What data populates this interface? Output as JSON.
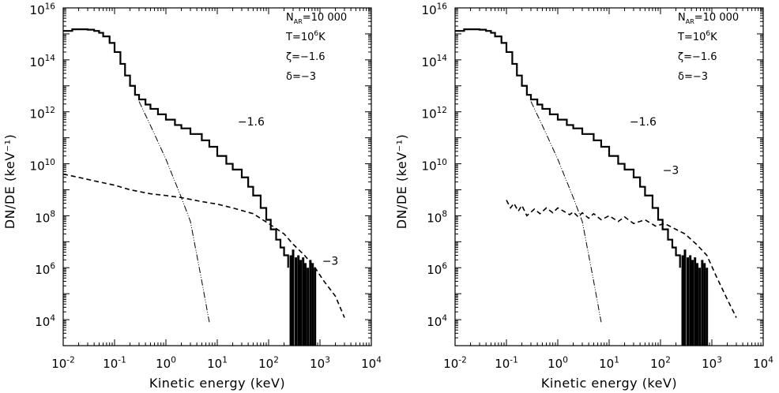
{
  "chart_data": [
    {
      "type": "line",
      "xscale": "log",
      "yscale": "log",
      "xlim": [
        0.01,
        10000
      ],
      "ylim": [
        1000,
        1e+16
      ],
      "xlabel": "Kinetic energy (keV)",
      "ylabel": "DN/DE (keV⁻¹)",
      "xticks": [
        {
          "value": 0.01,
          "base": "10",
          "exp": "-2"
        },
        {
          "value": 0.1,
          "base": "10",
          "exp": "-1"
        },
        {
          "value": 1,
          "base": "10",
          "exp": "0"
        },
        {
          "value": 10,
          "base": "10",
          "exp": "1"
        },
        {
          "value": 100,
          "base": "10",
          "exp": "2"
        },
        {
          "value": 1000,
          "base": "10",
          "exp": "3"
        },
        {
          "value": 10000,
          "base": "10",
          "exp": "4"
        }
      ],
      "yticks": [
        {
          "value": 10000,
          "base": "10",
          "exp": "4"
        },
        {
          "value": 1000000,
          "base": "10",
          "exp": "6"
        },
        {
          "value": 100000000,
          "base": "10",
          "exp": "8"
        },
        {
          "value": 10000000000,
          "base": "10",
          "exp": "10"
        },
        {
          "value": 1000000000000,
          "base": "10",
          "exp": "12"
        },
        {
          "value": 100000000000000,
          "base": "10",
          "exp": "14"
        },
        {
          "value": 1e+16,
          "base": "10",
          "exp": "16"
        }
      ],
      "legend_lines": [
        {
          "base": "N",
          "sub": "AR",
          "rest": "=10 000"
        },
        {
          "base": "T=10",
          "sup": "6",
          "rest": "K"
        },
        {
          "base": "ζ=−1.6"
        },
        {
          "base": "δ=−3"
        }
      ],
      "annotations": [
        {
          "text": "−1.6",
          "x": 25,
          "y": 300000000000.0
        },
        {
          "text": "−3",
          "x": 1100,
          "y": 1300000.0
        }
      ],
      "series": [
        {
          "style": "solid",
          "x": [
            0.01,
            0.015,
            0.02,
            0.03,
            0.04,
            0.05,
            0.06,
            0.08,
            0.1,
            0.13,
            0.16,
            0.2,
            0.25,
            0.3,
            0.4,
            0.5,
            0.7,
            1,
            1.5,
            2,
            3,
            5,
            7,
            10,
            15,
            20,
            30,
            40,
            50,
            70,
            90,
            110,
            140,
            170,
            200,
            240
          ],
          "y": [
            1300000000000000.0,
            1500000000000000.0,
            1500000000000000.0,
            1450000000000000.0,
            1300000000000000.0,
            1100000000000000.0,
            800000000000000.0,
            450000000000000.0,
            200000000000000.0,
            70000000000000.0,
            25000000000000.0,
            10000000000000.0,
            4500000000000.0,
            3000000000000.0,
            1900000000000.0,
            1300000000000.0,
            800000000000.0,
            500000000000.0,
            310000000000.0,
            230000000000.0,
            140000000000.0,
            80000000000.0,
            45000000000.0,
            20000000000.0,
            10000000000.0,
            6000000000.0,
            3000000000.0,
            1300000000.0,
            600000000.0,
            200000000.0,
            70000000.0,
            30000000.0,
            12000000.0,
            6000000.0,
            3000000.0,
            1000000.0
          ]
        },
        {
          "style": "dashdotdot",
          "x": [
            0.3,
            0.5,
            1,
            2,
            3,
            5,
            7
          ],
          "y": [
            2500000000000.0,
            300000000000.0,
            15000000000.0,
            500000000.0,
            60000000.0,
            300000.0,
            8000
          ]
        },
        {
          "style": "dashed",
          "x": [
            0.01,
            0.02,
            0.05,
            0.1,
            0.2,
            0.5,
            1,
            2,
            5,
            10,
            20,
            50,
            100,
            200,
            300,
            500,
            800,
            1200,
            2000,
            3000
          ],
          "y": [
            4000000000.0,
            3000000000.0,
            2000000000.0,
            1500000000.0,
            1000000000.0,
            700000000.0,
            600000000.0,
            500000000.0,
            350000000.0,
            280000000.0,
            200000000.0,
            120000000.0,
            50000000.0,
            20000000.0,
            8000000.0,
            3000000.0,
            1000000.0,
            300000.0,
            80000.0,
            12000.0
          ]
        },
        {
          "style": "noise",
          "x": [
            270,
            300,
            340,
            380,
            420,
            470,
            520,
            580,
            650,
            720,
            800
          ],
          "ymax": [
            3000000.0,
            5000000.0,
            2500000.0,
            3000000.0,
            2000000.0,
            2500000.0,
            1500000.0,
            1000000.0,
            2000000.0,
            1500000.0,
            1000000.0
          ]
        }
      ]
    },
    {
      "type": "line",
      "xscale": "log",
      "yscale": "log",
      "xlim": [
        0.01,
        10000
      ],
      "ylim": [
        1000,
        1e+16
      ],
      "xlabel": "Kinetic energy (keV)",
      "ylabel": "DN/DE (keV⁻¹)",
      "xticks": [
        {
          "value": 0.01,
          "base": "10",
          "exp": "-2"
        },
        {
          "value": 0.1,
          "base": "10",
          "exp": "-1"
        },
        {
          "value": 1,
          "base": "10",
          "exp": "0"
        },
        {
          "value": 10,
          "base": "10",
          "exp": "1"
        },
        {
          "value": 100,
          "base": "10",
          "exp": "2"
        },
        {
          "value": 1000,
          "base": "10",
          "exp": "3"
        },
        {
          "value": 10000,
          "base": "10",
          "exp": "4"
        }
      ],
      "yticks": [
        {
          "value": 10000,
          "base": "10",
          "exp": "4"
        },
        {
          "value": 1000000,
          "base": "10",
          "exp": "6"
        },
        {
          "value": 100000000,
          "base": "10",
          "exp": "8"
        },
        {
          "value": 10000000000,
          "base": "10",
          "exp": "10"
        },
        {
          "value": 1000000000000,
          "base": "10",
          "exp": "12"
        },
        {
          "value": 100000000000000,
          "base": "10",
          "exp": "14"
        },
        {
          "value": 1e+16,
          "base": "10",
          "exp": "16"
        }
      ],
      "legend_lines": [
        {
          "base": "N",
          "sub": "AR",
          "rest": "=10 000"
        },
        {
          "base": "T=10",
          "sup": "6",
          "rest": "K"
        },
        {
          "base": "ζ=−1.6"
        },
        {
          "base": "δ=−3"
        }
      ],
      "annotations": [
        {
          "text": "−1.6",
          "x": 25,
          "y": 300000000000.0
        },
        {
          "text": "−3",
          "x": 110,
          "y": 4000000000.0
        }
      ],
      "series": [
        {
          "style": "solid",
          "x": [
            0.01,
            0.015,
            0.02,
            0.03,
            0.04,
            0.05,
            0.06,
            0.08,
            0.1,
            0.13,
            0.16,
            0.2,
            0.25,
            0.3,
            0.4,
            0.5,
            0.7,
            1,
            1.5,
            2,
            3,
            5,
            7,
            10,
            15,
            20,
            30,
            40,
            50,
            70,
            90,
            110,
            140,
            170,
            200,
            240
          ],
          "y": [
            1300000000000000.0,
            1500000000000000.0,
            1500000000000000.0,
            1450000000000000.0,
            1300000000000000.0,
            1100000000000000.0,
            800000000000000.0,
            450000000000000.0,
            200000000000000.0,
            70000000000000.0,
            25000000000000.0,
            10000000000000.0,
            4500000000000.0,
            3000000000000.0,
            1900000000000.0,
            1300000000000.0,
            800000000000.0,
            500000000000.0,
            310000000000.0,
            230000000000.0,
            140000000000.0,
            80000000000.0,
            45000000000.0,
            20000000000.0,
            10000000000.0,
            6000000000.0,
            3000000000.0,
            1300000000.0,
            600000000.0,
            200000000.0,
            70000000.0,
            30000000.0,
            12000000.0,
            6000000.0,
            3000000.0,
            1000000.0
          ]
        },
        {
          "style": "dashdotdot",
          "x": [
            0.3,
            0.5,
            1,
            2,
            3,
            5,
            7
          ],
          "y": [
            2500000000000.0,
            300000000000.0,
            15000000000.0,
            500000000.0,
            60000000.0,
            300000.0,
            8000
          ]
        },
        {
          "style": "dashed",
          "x": [
            0.1,
            0.12,
            0.14,
            0.17,
            0.2,
            0.25,
            0.35,
            0.45,
            0.6,
            0.8,
            1,
            1.3,
            1.7,
            2,
            2.5,
            3,
            4,
            5,
            7,
            10,
            15,
            20,
            30,
            50,
            80,
            120,
            200,
            300,
            500,
            800,
            1200,
            2000,
            3000
          ],
          "y": [
            400000000.0,
            200000000.0,
            300000000.0,
            150000000.0,
            250000000.0,
            100000000.0,
            180000000.0,
            120000000.0,
            200000000.0,
            130000000.0,
            200000000.0,
            150000000.0,
            110000000.0,
            140000000.0,
            90000000.0,
            130000000.0,
            80000000.0,
            120000000.0,
            70000000.0,
            100000000.0,
            60000000.0,
            90000000.0,
            50000000.0,
            70000000.0,
            40000000.0,
            50000000.0,
            30000000.0,
            20000000.0,
            8000000.0,
            3000000.0,
            500000.0,
            60000.0,
            12000.0
          ]
        },
        {
          "style": "noise",
          "x": [
            270,
            300,
            340,
            380,
            420,
            470,
            520,
            580,
            650,
            720,
            800
          ],
          "ymax": [
            3000000.0,
            5000000.0,
            2500000.0,
            3000000.0,
            2000000.0,
            2500000.0,
            1500000.0,
            1000000.0,
            2000000.0,
            1500000.0,
            1000000.0
          ]
        }
      ]
    }
  ]
}
